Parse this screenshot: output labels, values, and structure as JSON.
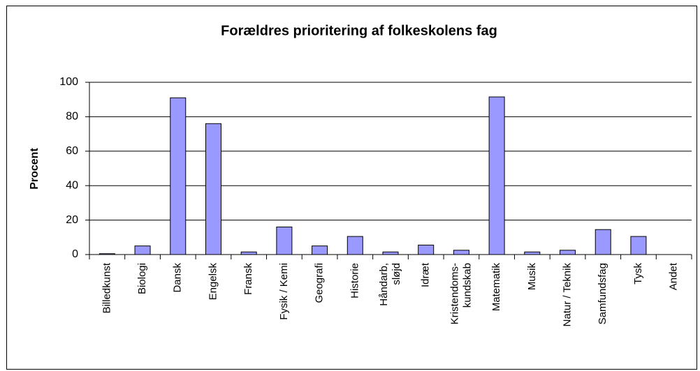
{
  "chart_data": {
    "type": "bar",
    "title": "Forældres prioritering af folkeskolens fag",
    "y_label": "Procent",
    "categories": [
      "Billedkunst",
      "Biologi",
      "Dansk",
      "Engelsk",
      "Fransk",
      "Fysik / Kemi",
      "Geografi",
      "Historie",
      "Håndarb,\nsløjd",
      "Idræt",
      "Kristendoms-\nkundskab",
      "Matematik",
      "Musik",
      "Natur / Teknik",
      "Samfundsfag",
      "Tysk",
      "Andet"
    ],
    "values": [
      0.5,
      5,
      91,
      76,
      1.5,
      16,
      5,
      10.5,
      1.5,
      5.5,
      2.5,
      91.5,
      1.5,
      2.5,
      14.5,
      10.5,
      0
    ],
    "color": "#9999ff",
    "ylim": [
      0,
      100
    ],
    "yticks": [
      0,
      20,
      40,
      60,
      80,
      100
    ],
    "grid": true
  }
}
